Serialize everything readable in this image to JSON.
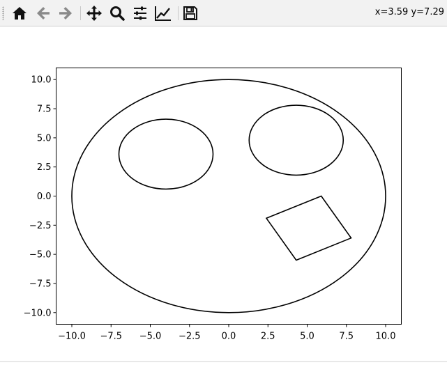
{
  "toolbar": {
    "buttons": [
      {
        "name": "home-button",
        "icon": "home-icon"
      },
      {
        "name": "back-button",
        "icon": "arrow-left-icon"
      },
      {
        "name": "forward-button",
        "icon": "arrow-right-icon"
      },
      {
        "name": "pan-button",
        "icon": "move-icon"
      },
      {
        "name": "zoom-button",
        "icon": "magnifier-icon"
      },
      {
        "name": "configure-subplots-button",
        "icon": "sliders-icon"
      },
      {
        "name": "edit-axis-button",
        "icon": "line-chart-icon"
      },
      {
        "name": "save-button",
        "icon": "floppy-disk-icon"
      }
    ],
    "coords": "x=3.59 y=7.29"
  },
  "chart_data": {
    "type": "line",
    "xlim": [
      -11,
      11
    ],
    "ylim": [
      -11,
      11
    ],
    "xticks": [
      -10,
      -7.5,
      -5,
      -2.5,
      0,
      2.5,
      5,
      7.5,
      10
    ],
    "xtick_labels": [
      "−10.0",
      "−7.5",
      "−5.0",
      "−2.5",
      "0.0",
      "2.5",
      "5.0",
      "7.5",
      "10.0"
    ],
    "yticks": [
      10,
      7.5,
      5,
      2.5,
      0,
      -2.5,
      -5,
      -7.5,
      -10
    ],
    "ytick_labels": [
      "10.0",
      "7.5",
      "5.0",
      "2.5",
      "0.0",
      "−2.5",
      "−5.0",
      "−7.5",
      "−10.0"
    ],
    "grid": false,
    "line_color": "#000000",
    "shapes": [
      {
        "kind": "ellipse",
        "cx": 0,
        "cy": 0,
        "rx": 10,
        "ry": 10
      },
      {
        "kind": "ellipse",
        "cx": -4,
        "cy": 3.6,
        "rx": 3,
        "ry": 3
      },
      {
        "kind": "ellipse",
        "cx": 4.3,
        "cy": 4.8,
        "rx": 3,
        "ry": 3
      },
      {
        "kind": "polygon",
        "points": [
          [
            2.4,
            -1.9
          ],
          [
            5.9,
            0
          ],
          [
            7.8,
            -3.6
          ],
          [
            4.3,
            -5.5
          ]
        ]
      }
    ]
  }
}
